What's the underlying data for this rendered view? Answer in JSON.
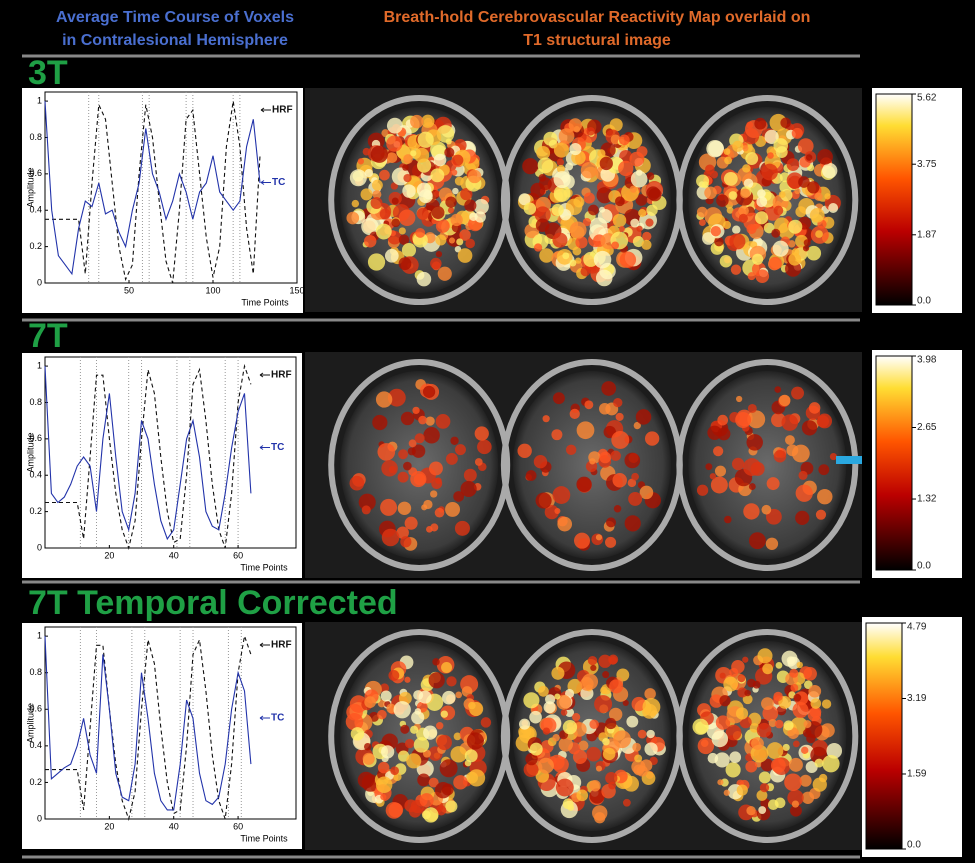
{
  "header": {
    "left": [
      "Average Time Course of Voxels",
      "in Contralesional Hemisphere"
    ],
    "right": [
      "Breath-hold Cerebrovascular Reactivity Map overlaid on",
      "T1 structural image"
    ]
  },
  "rows": [
    {
      "label": "3T",
      "colorbar": {
        "lim": [
          0,
          5.62
        ],
        "ticks": [
          5.62,
          3.75,
          1.87,
          {
            "value": 0,
            "label": "0.0"
          }
        ]
      }
    },
    {
      "label": "7T",
      "colorbar": {
        "lim": [
          0,
          3.98
        ],
        "ticks": [
          3.98,
          2.65,
          1.32,
          {
            "value": 0,
            "label": "0.0"
          }
        ]
      }
    },
    {
      "label": "7T Temporal Corrected",
      "colorbar": {
        "lim": [
          0,
          4.79
        ],
        "ticks": [
          4.79,
          3.19,
          1.59,
          {
            "value": 0,
            "label": "0.0"
          }
        ]
      }
    }
  ],
  "chart_data": [
    {
      "type": "line",
      "xlabel": "Time Points",
      "ylabel": "Amplitude",
      "xlim": [
        0,
        150
      ],
      "xticks": [
        50,
        100,
        150
      ],
      "ylim": [
        0,
        1.05
      ],
      "yticks": [
        0,
        0.2,
        0.4,
        0.6,
        0.8,
        1
      ],
      "x": [
        0,
        4,
        8,
        12,
        16,
        20,
        24,
        28,
        32,
        36,
        40,
        44,
        48,
        52,
        56,
        60,
        64,
        68,
        72,
        76,
        80,
        84,
        88,
        92,
        96,
        100,
        104,
        108,
        112,
        116,
        120,
        124,
        128
      ],
      "events": [
        26,
        32,
        58,
        62,
        84,
        88,
        112,
        116
      ],
      "series": [
        {
          "name": "HRF",
          "color": "#111111",
          "values": [
            0.35,
            0.35,
            0.35,
            0.35,
            0.35,
            0.35,
            0.05,
            0.55,
            0.98,
            0.9,
            0.55,
            0.2,
            0.02,
            0.1,
            0.6,
            0.98,
            0.8,
            0.45,
            0.12,
            0,
            0.4,
            0.9,
            0.95,
            0.6,
            0.25,
            0.03,
            0.2,
            0.75,
            1,
            0.75,
            0.3,
            0.05,
            0.7
          ]
        },
        {
          "name": "TC",
          "color": "#2233aa",
          "values": [
            1,
            0.4,
            0.15,
            0.1,
            0.05,
            0.3,
            0.45,
            0.42,
            0.55,
            0.38,
            0.4,
            0.28,
            0.2,
            0.4,
            0.55,
            0.85,
            0.6,
            0.5,
            0.35,
            0.45,
            0.6,
            0.5,
            0.35,
            0.5,
            0.55,
            0.7,
            0.5,
            0.45,
            0.4,
            0.45,
            0.75,
            0.9,
            0.55
          ]
        }
      ]
    },
    {
      "type": "line",
      "xlabel": "Time Points",
      "ylabel": "Amplitude",
      "xlim": [
        0,
        78
      ],
      "xticks": [
        20,
        40,
        60
      ],
      "ylim": [
        0,
        1.05
      ],
      "yticks": [
        0,
        0.2,
        0.4,
        0.6,
        0.8,
        1
      ],
      "x": [
        0,
        2,
        4,
        6,
        8,
        10,
        12,
        14,
        16,
        18,
        20,
        22,
        24,
        26,
        28,
        30,
        32,
        34,
        36,
        38,
        40,
        42,
        44,
        46,
        48,
        50,
        52,
        54,
        56,
        58,
        60,
        62,
        64
      ],
      "events": [
        11,
        16,
        26,
        30,
        41,
        45,
        56,
        60
      ],
      "series": [
        {
          "name": "HRF",
          "color": "#111111",
          "values": [
            0.25,
            0.25,
            0.25,
            0.25,
            0.25,
            0.25,
            0.05,
            0.5,
            0.95,
            0.95,
            0.6,
            0.3,
            0.1,
            0,
            0.15,
            0.6,
            0.98,
            0.85,
            0.5,
            0.2,
            0.03,
            0.05,
            0.4,
            0.9,
            0.98,
            0.7,
            0.35,
            0.1,
            0,
            0.3,
            0.8,
            1,
            0.9
          ]
        },
        {
          "name": "TC",
          "color": "#2233aa",
          "values": [
            1,
            0.3,
            0.25,
            0.28,
            0.35,
            0.45,
            0.5,
            0.45,
            0.2,
            0.6,
            0.85,
            0.5,
            0.2,
            0.1,
            0.3,
            0.7,
            0.6,
            0.35,
            0.15,
            0.05,
            0.1,
            0.35,
            0.6,
            0.7,
            0.5,
            0.2,
            0.12,
            0.1,
            0.3,
            0.55,
            0.75,
            0.85,
            0.3
          ]
        }
      ]
    },
    {
      "type": "line",
      "xlabel": "Time Points",
      "ylabel": "Amplitude",
      "xlim": [
        0,
        78
      ],
      "xticks": [
        20,
        40,
        60
      ],
      "ylim": [
        0,
        1.05
      ],
      "yticks": [
        0,
        0.2,
        0.4,
        0.6,
        0.8,
        1
      ],
      "x": [
        0,
        2,
        4,
        6,
        8,
        10,
        12,
        14,
        16,
        18,
        20,
        22,
        24,
        26,
        28,
        30,
        32,
        34,
        36,
        38,
        40,
        42,
        44,
        46,
        48,
        50,
        52,
        54,
        56,
        58,
        60,
        62,
        64
      ],
      "events": [
        11,
        16,
        27,
        31,
        42,
        46,
        57,
        61
      ],
      "series": [
        {
          "name": "HRF",
          "color": "#111111",
          "values": [
            0.27,
            0.27,
            0.27,
            0.27,
            0.27,
            0.27,
            0.05,
            0.5,
            0.95,
            0.95,
            0.6,
            0.3,
            0.1,
            0,
            0.15,
            0.6,
            0.98,
            0.85,
            0.5,
            0.2,
            0.03,
            0.05,
            0.4,
            0.9,
            0.98,
            0.7,
            0.35,
            0.1,
            0,
            0.3,
            0.8,
            1,
            0.9
          ]
        },
        {
          "name": "TC",
          "color": "#2233aa",
          "values": [
            1,
            0.22,
            0.25,
            0.28,
            0.3,
            0.4,
            0.55,
            0.35,
            0.25,
            0.9,
            0.6,
            0.25,
            0.12,
            0.1,
            0.3,
            0.8,
            0.55,
            0.25,
            0.1,
            0.05,
            0.05,
            0.3,
            0.65,
            0.55,
            0.25,
            0.1,
            0.08,
            0.12,
            0.3,
            0.6,
            0.8,
            0.7,
            0.3
          ]
        }
      ]
    }
  ]
}
